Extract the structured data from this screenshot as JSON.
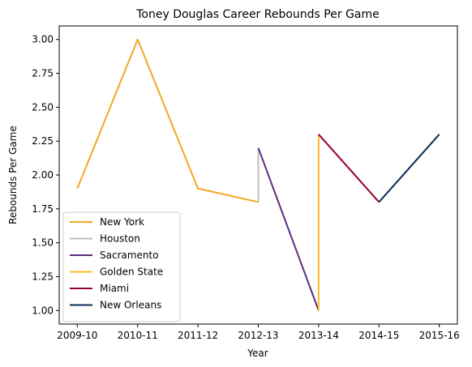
{
  "chart_data": {
    "type": "line",
    "title": "Toney Douglas Career Rebounds Per Game",
    "xlabel": "Year",
    "ylabel": "Rebounds Per Game",
    "categories": [
      "2009-10",
      "2010-11",
      "2011-12",
      "2012-13",
      "2013-14",
      "2014-15",
      "2015-16"
    ],
    "y_ticks": [
      "1.00",
      "1.25",
      "1.50",
      "1.75",
      "2.00",
      "2.25",
      "2.50",
      "2.75",
      "3.00"
    ],
    "ylim": [
      0.9,
      3.1
    ],
    "legend_position": "lower-left",
    "grid": false,
    "series": [
      {
        "name": "New York",
        "color": "#F5A623",
        "points": [
          {
            "x": "2009-10",
            "y": 1.9
          },
          {
            "x": "2010-11",
            "y": 3.0
          },
          {
            "x": "2011-12",
            "y": 1.9
          },
          {
            "x": "2012-13",
            "y": 1.8
          }
        ]
      },
      {
        "name": "Houston",
        "color": "#BEBEBE",
        "points": [
          {
            "x": "2012-13",
            "y": 1.8
          },
          {
            "x": "2012-13",
            "y": 2.2
          }
        ]
      },
      {
        "name": "Sacramento",
        "color": "#5A2D82",
        "points": [
          {
            "x": "2012-13",
            "y": 2.2
          },
          {
            "x": "2013-14",
            "y": 1.0
          }
        ]
      },
      {
        "name": "Golden State",
        "color": "#FDB927",
        "points": [
          {
            "x": "2013-14",
            "y": 1.0
          },
          {
            "x": "2013-14",
            "y": 2.3
          }
        ]
      },
      {
        "name": "Miami",
        "color": "#98002E",
        "points": [
          {
            "x": "2013-14",
            "y": 2.3
          },
          {
            "x": "2014-15",
            "y": 1.8
          }
        ]
      },
      {
        "name": "New Orleans",
        "color": "#0C2C56",
        "points": [
          {
            "x": "2014-15",
            "y": 1.8
          },
          {
            "x": "2015-16",
            "y": 2.3
          }
        ]
      }
    ]
  }
}
